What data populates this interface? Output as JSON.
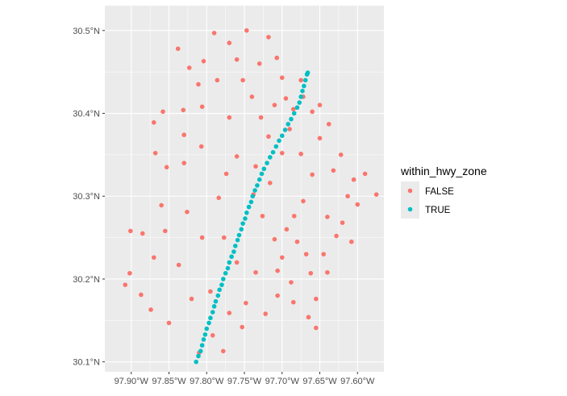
{
  "chart_data": {
    "type": "scatter",
    "title": "",
    "xlabel": "",
    "ylabel": "",
    "xlim": [
      -97.935,
      -97.565
    ],
    "ylim": [
      30.088,
      30.53
    ],
    "grid": true,
    "legend_placement": "right",
    "x_ticks": [
      {
        "value": -97.9,
        "label": "97.90°W"
      },
      {
        "value": -97.85,
        "label": "97.85°W"
      },
      {
        "value": -97.8,
        "label": "97.80°W"
      },
      {
        "value": -97.75,
        "label": "97.75°W"
      },
      {
        "value": -97.7,
        "label": "97.70°W"
      },
      {
        "value": -97.65,
        "label": "97.65°W"
      },
      {
        "value": -97.6,
        "label": "97.60°W"
      }
    ],
    "y_ticks": [
      {
        "value": 30.1,
        "label": "30.1°N"
      },
      {
        "value": 30.2,
        "label": "30.2°N"
      },
      {
        "value": 30.3,
        "label": "30.3°N"
      },
      {
        "value": 30.4,
        "label": "30.4°N"
      },
      {
        "value": 30.5,
        "label": "30.5°N"
      }
    ],
    "legend": {
      "title": "within_hwy_zone",
      "entries": [
        {
          "label": "FALSE",
          "color": "#F8766D"
        },
        {
          "label": "TRUE",
          "color": "#00BFC4"
        }
      ]
    },
    "series": [
      {
        "name": "FALSE",
        "color": "#F8766D",
        "points": [
          [
            -97.87,
            30.389
          ],
          [
            -97.838,
            30.478
          ],
          [
            -97.823,
            30.455
          ],
          [
            -97.811,
            30.435
          ],
          [
            -97.831,
            30.404
          ],
          [
            -97.858,
            30.402
          ],
          [
            -97.868,
            30.352
          ],
          [
            -97.853,
            30.335
          ],
          [
            -97.885,
            30.255
          ],
          [
            -97.901,
            30.258
          ],
          [
            -97.855,
            30.258
          ],
          [
            -97.908,
            30.193
          ],
          [
            -97.902,
            30.207
          ],
          [
            -97.874,
            30.163
          ],
          [
            -97.85,
            30.147
          ],
          [
            -97.87,
            30.226
          ],
          [
            -97.837,
            30.217
          ],
          [
            -97.82,
            30.176
          ],
          [
            -97.795,
            30.185
          ],
          [
            -97.81,
            30.111
          ],
          [
            -97.792,
            30.132
          ],
          [
            -97.784,
            30.298
          ],
          [
            -97.774,
            30.327
          ],
          [
            -97.76,
            30.348
          ],
          [
            -97.77,
            30.395
          ],
          [
            -97.786,
            30.44
          ],
          [
            -97.77,
            30.485
          ],
          [
            -97.76,
            30.465
          ],
          [
            -97.752,
            30.44
          ],
          [
            -97.74,
            30.42
          ],
          [
            -97.73,
            30.46
          ],
          [
            -97.728,
            30.395
          ],
          [
            -97.718,
            30.372
          ],
          [
            -97.735,
            30.336
          ],
          [
            -97.738,
            30.302
          ],
          [
            -97.726,
            30.276
          ],
          [
            -97.716,
            30.316
          ],
          [
            -97.7,
            30.352
          ],
          [
            -97.69,
            30.381
          ],
          [
            -97.71,
            30.41
          ],
          [
            -97.7,
            30.443
          ],
          [
            -97.695,
            30.418
          ],
          [
            -97.685,
            30.405
          ],
          [
            -97.66,
            30.402
          ],
          [
            -97.65,
            30.41
          ],
          [
            -97.638,
            30.387
          ],
          [
            -97.65,
            30.37
          ],
          [
            -97.632,
            30.331
          ],
          [
            -97.622,
            30.35
          ],
          [
            -97.605,
            30.32
          ],
          [
            -97.59,
            30.327
          ],
          [
            -97.575,
            30.302
          ],
          [
            -97.613,
            30.3
          ],
          [
            -97.64,
            30.275
          ],
          [
            -97.6,
            30.29
          ],
          [
            -97.608,
            30.245
          ],
          [
            -97.64,
            30.208
          ],
          [
            -97.655,
            30.176
          ],
          [
            -97.665,
            30.154
          ],
          [
            -97.655,
            30.141
          ],
          [
            -97.662,
            30.207
          ],
          [
            -97.68,
            30.245
          ],
          [
            -97.685,
            30.172
          ],
          [
            -97.706,
            30.18
          ],
          [
            -97.722,
            30.158
          ],
          [
            -97.735,
            30.208
          ],
          [
            -97.748,
            30.171
          ],
          [
            -97.76,
            30.22
          ],
          [
            -97.753,
            30.142
          ],
          [
            -97.77,
            30.159
          ],
          [
            -97.777,
            30.25
          ],
          [
            -97.778,
            30.113
          ],
          [
            -97.806,
            30.25
          ],
          [
            -97.826,
            30.281
          ],
          [
            -97.86,
            30.289
          ],
          [
            -97.887,
            30.181
          ],
          [
            -97.83,
            30.34
          ],
          [
            -97.807,
            30.36
          ],
          [
            -97.83,
            30.374
          ],
          [
            -97.806,
            30.408
          ],
          [
            -97.804,
            30.463
          ],
          [
            -97.79,
            30.497
          ],
          [
            -97.747,
            30.5
          ],
          [
            -97.718,
            30.492
          ],
          [
            -97.707,
            30.467
          ],
          [
            -97.675,
            30.44
          ],
          [
            -97.672,
            30.42
          ],
          [
            -97.675,
            30.351
          ],
          [
            -97.66,
            30.326
          ],
          [
            -97.672,
            30.294
          ],
          [
            -97.684,
            30.276
          ],
          [
            -97.694,
            30.26
          ],
          [
            -97.71,
            30.248
          ],
          [
            -97.7,
            30.226
          ],
          [
            -97.706,
            30.21
          ],
          [
            -97.688,
            30.196
          ],
          [
            -97.668,
            30.23
          ],
          [
            -97.645,
            30.23
          ],
          [
            -97.628,
            30.252
          ],
          [
            -97.62,
            30.268
          ]
        ]
      },
      {
        "name": "TRUE",
        "color": "#00BFC4",
        "points": [
          [
            -97.814,
            30.1
          ],
          [
            -97.811,
            30.107
          ],
          [
            -97.808,
            30.113
          ],
          [
            -97.806,
            30.12
          ],
          [
            -97.804,
            30.127
          ],
          [
            -97.802,
            30.133
          ],
          [
            -97.8,
            30.14
          ],
          [
            -97.797,
            30.147
          ],
          [
            -97.795,
            30.153
          ],
          [
            -97.792,
            30.16
          ],
          [
            -97.79,
            30.167
          ],
          [
            -97.788,
            30.173
          ],
          [
            -97.785,
            30.18
          ],
          [
            -97.783,
            30.187
          ],
          [
            -97.78,
            30.193
          ],
          [
            -97.778,
            30.2
          ],
          [
            -97.775,
            30.207
          ],
          [
            -97.772,
            30.213
          ],
          [
            -97.77,
            30.22
          ],
          [
            -97.767,
            30.227
          ],
          [
            -97.764,
            30.233
          ],
          [
            -97.762,
            30.24
          ],
          [
            -97.759,
            30.247
          ],
          [
            -97.757,
            30.253
          ],
          [
            -97.754,
            30.26
          ],
          [
            -97.752,
            30.267
          ],
          [
            -97.749,
            30.273
          ],
          [
            -97.747,
            30.28
          ],
          [
            -97.744,
            30.287
          ],
          [
            -97.741,
            30.293
          ],
          [
            -97.739,
            30.3
          ],
          [
            -97.736,
            30.307
          ],
          [
            -97.733,
            30.313
          ],
          [
            -97.73,
            30.32
          ],
          [
            -97.727,
            30.327
          ],
          [
            -97.724,
            30.333
          ],
          [
            -97.72,
            30.34
          ],
          [
            -97.716,
            30.347
          ],
          [
            -97.712,
            30.353
          ],
          [
            -97.708,
            30.36
          ],
          [
            -97.704,
            30.367
          ],
          [
            -97.7,
            30.373
          ],
          [
            -97.696,
            30.38
          ],
          [
            -97.692,
            30.387
          ],
          [
            -97.688,
            30.393
          ],
          [
            -97.684,
            30.4
          ],
          [
            -97.68,
            30.407
          ],
          [
            -97.677,
            30.413
          ],
          [
            -97.675,
            30.42
          ],
          [
            -97.673,
            30.427
          ],
          [
            -97.671,
            30.433
          ],
          [
            -97.669,
            30.44
          ],
          [
            -97.667,
            30.447
          ],
          [
            -97.666,
            30.449
          ]
        ]
      }
    ]
  }
}
